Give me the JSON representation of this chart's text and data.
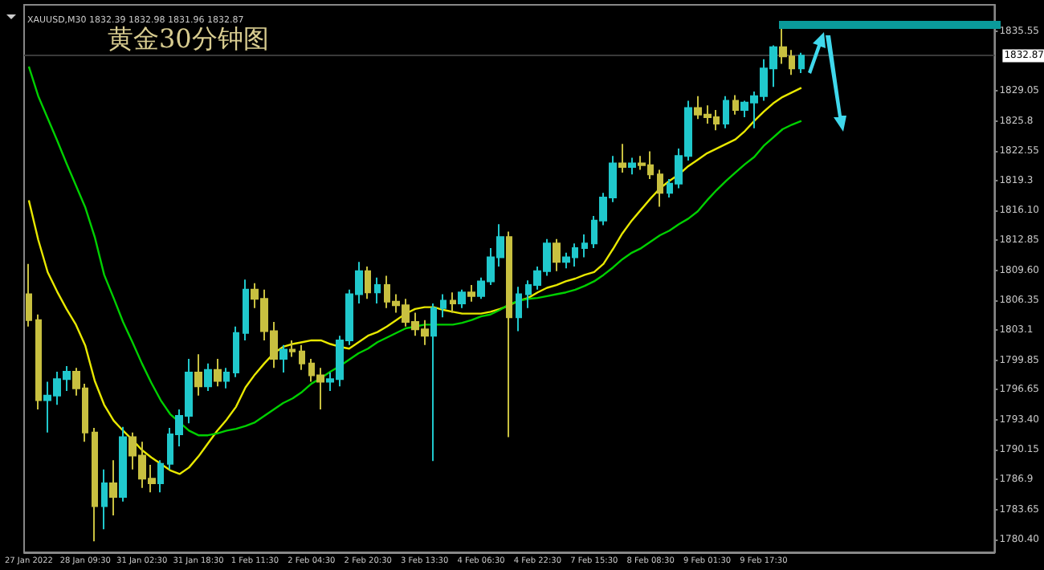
{
  "chart_data": {
    "type": "candlestick",
    "title": "黄金30分钟图",
    "annotations": [
      "XAUUSD,M30 1832.39 1832.98 1831.96 1832.87"
    ],
    "categories": [
      "27 Jan 2022",
      null,
      null,
      null,
      null,
      null,
      "28 Jan 09:30",
      null,
      null,
      null,
      null,
      null,
      "31 Jan 02:30",
      null,
      null,
      null,
      null,
      null,
      "31 Jan 18:30",
      null,
      null,
      null,
      null,
      null,
      "1 Feb 11:30",
      null,
      null,
      null,
      null,
      null,
      "2 Feb 04:30",
      null,
      null,
      null,
      null,
      null,
      "2 Feb 20:30",
      null,
      null,
      null,
      null,
      null,
      "3 Feb 13:30",
      null,
      null,
      null,
      null,
      null,
      "4 Feb 06:30",
      null,
      null,
      null,
      null,
      null,
      "4 Feb 22:30",
      null,
      null,
      null,
      null,
      null,
      "7 Feb 15:30",
      null,
      null,
      null,
      null,
      null,
      "8 Feb 08:30",
      null,
      null,
      null,
      null,
      null,
      "9 Feb 01:30",
      null,
      null,
      null,
      null,
      null,
      "9 Feb 17:30",
      null,
      null,
      null,
      null,
      null,
      null,
      null,
      null,
      null,
      null,
      null,
      null,
      null,
      null,
      null,
      null,
      null,
      null,
      null,
      null,
      null,
      null,
      null,
      null
    ],
    "ohlc": [
      [
        1807.0,
        1810.3,
        1803.5,
        1804.2
      ],
      [
        1804.2,
        1804.8,
        1794.5,
        1795.5
      ],
      [
        1795.5,
        1797.5,
        1792.0,
        1796.0
      ],
      [
        1796.0,
        1798.6,
        1795.0,
        1797.8
      ],
      [
        1797.8,
        1799.2,
        1796.5,
        1798.6
      ],
      [
        1798.6,
        1799.0,
        1796.0,
        1796.8
      ],
      [
        1796.8,
        1797.3,
        1791.0,
        1792.0
      ],
      [
        1792.0,
        1792.5,
        1780.2,
        1784.0
      ],
      [
        1784.0,
        1788.0,
        1781.5,
        1786.5
      ],
      [
        1786.5,
        1789.0,
        1783.0,
        1785.0
      ],
      [
        1785.0,
        1792.6,
        1784.5,
        1791.5
      ],
      [
        1791.5,
        1792.0,
        1788.0,
        1789.5
      ],
      [
        1789.5,
        1791.0,
        1786.0,
        1787.0
      ],
      [
        1787.0,
        1788.5,
        1785.5,
        1786.5
      ],
      [
        1786.5,
        1789.0,
        1785.5,
        1788.6
      ],
      [
        1788.6,
        1792.5,
        1788.0,
        1791.8
      ],
      [
        1791.8,
        1794.5,
        1790.5,
        1793.8
      ],
      [
        1793.8,
        1800.0,
        1793.0,
        1798.5
      ],
      [
        1798.5,
        1800.5,
        1796.0,
        1797.0
      ],
      [
        1797.0,
        1799.5,
        1796.5,
        1798.8
      ],
      [
        1798.8,
        1800.0,
        1797.0,
        1797.6
      ],
      [
        1797.6,
        1799.0,
        1796.8,
        1798.5
      ],
      [
        1798.5,
        1803.5,
        1798.0,
        1802.8
      ],
      [
        1802.8,
        1808.6,
        1802.0,
        1807.5
      ],
      [
        1807.5,
        1808.2,
        1805.5,
        1806.5
      ],
      [
        1806.5,
        1807.5,
        1802.0,
        1803.0
      ],
      [
        1803.0,
        1804.0,
        1799.0,
        1800.0
      ],
      [
        1800.0,
        1801.5,
        1798.5,
        1801.0
      ],
      [
        1801.0,
        1802.0,
        1800.2,
        1800.8
      ],
      [
        1800.8,
        1801.5,
        1798.8,
        1799.5
      ],
      [
        1799.5,
        1800.0,
        1797.5,
        1798.2
      ],
      [
        1798.2,
        1799.0,
        1794.5,
        1797.5
      ],
      [
        1797.5,
        1798.5,
        1796.5,
        1797.8
      ],
      [
        1797.8,
        1802.5,
        1797.0,
        1802.0
      ],
      [
        1802.0,
        1807.5,
        1801.5,
        1807.0
      ],
      [
        1807.0,
        1810.5,
        1806.0,
        1809.5
      ],
      [
        1809.5,
        1810.0,
        1806.5,
        1807.2
      ],
      [
        1807.2,
        1808.8,
        1806.0,
        1808.0
      ],
      [
        1808.0,
        1809.0,
        1805.5,
        1806.2
      ],
      [
        1806.2,
        1807.0,
        1805.0,
        1805.8
      ],
      [
        1805.8,
        1806.5,
        1803.5,
        1804.0
      ],
      [
        1804.0,
        1805.0,
        1802.5,
        1803.2
      ],
      [
        1803.2,
        1804.2,
        1801.5,
        1802.5
      ],
      [
        1802.5,
        1806.0,
        1788.9,
        1805.5
      ],
      [
        1805.5,
        1807.0,
        1804.5,
        1806.3
      ],
      [
        1806.3,
        1807.2,
        1805.0,
        1806.0
      ],
      [
        1806.0,
        1807.5,
        1805.5,
        1807.2
      ],
      [
        1807.2,
        1808.0,
        1806.2,
        1806.8
      ],
      [
        1806.8,
        1808.8,
        1806.5,
        1808.4
      ],
      [
        1808.4,
        1812.0,
        1808.0,
        1811.0
      ],
      [
        1811.0,
        1814.6,
        1810.0,
        1813.2
      ],
      [
        1813.2,
        1813.8,
        1791.5,
        1804.5
      ],
      [
        1804.5,
        1807.8,
        1803.0,
        1807.0
      ],
      [
        1807.0,
        1808.5,
        1805.5,
        1808.0
      ],
      [
        1808.0,
        1810.0,
        1807.5,
        1809.5
      ],
      [
        1809.5,
        1813.0,
        1809.0,
        1812.5
      ],
      [
        1812.5,
        1813.0,
        1809.5,
        1810.5
      ],
      [
        1810.5,
        1811.5,
        1809.8,
        1811.0
      ],
      [
        1811.0,
        1812.5,
        1810.0,
        1812.0
      ],
      [
        1812.0,
        1813.5,
        1811.0,
        1812.5
      ],
      [
        1812.5,
        1815.5,
        1812.0,
        1815.0
      ],
      [
        1815.0,
        1818.0,
        1814.5,
        1817.5
      ],
      [
        1817.5,
        1822.0,
        1817.0,
        1821.2
      ],
      [
        1821.2,
        1823.3,
        1820.2,
        1820.8
      ],
      [
        1820.8,
        1821.8,
        1820.0,
        1821.2
      ],
      [
        1821.2,
        1822.0,
        1820.5,
        1821.0
      ],
      [
        1821.0,
        1822.5,
        1819.5,
        1820.0
      ],
      [
        1820.0,
        1820.5,
        1816.5,
        1818.0
      ],
      [
        1818.0,
        1819.5,
        1817.5,
        1819.0
      ],
      [
        1819.0,
        1822.8,
        1818.5,
        1822.0
      ],
      [
        1822.0,
        1828.0,
        1821.5,
        1827.2
      ],
      [
        1827.2,
        1828.5,
        1826.0,
        1826.5
      ],
      [
        1826.5,
        1827.5,
        1825.5,
        1826.2
      ],
      [
        1826.2,
        1827.0,
        1824.8,
        1825.5
      ],
      [
        1825.5,
        1828.5,
        1825.0,
        1828.0
      ],
      [
        1828.0,
        1828.6,
        1826.5,
        1827.0
      ],
      [
        1827.0,
        1828.0,
        1826.2,
        1827.8
      ],
      [
        1827.8,
        1829.0,
        1825.0,
        1828.5
      ],
      [
        1828.5,
        1832.5,
        1828.0,
        1831.5
      ],
      [
        1831.5,
        1834.0,
        1829.5,
        1833.8
      ],
      [
        1833.8,
        1836.0,
        1832.0,
        1832.8
      ],
      [
        1832.8,
        1833.5,
        1830.8,
        1831.5
      ],
      [
        1831.5,
        1833.2,
        1831.0,
        1832.9
      ],
      null,
      null,
      null,
      null,
      null,
      null,
      null,
      null,
      null,
      null,
      null,
      null,
      null,
      null,
      null,
      null,
      null,
      null,
      null,
      null
    ],
    "series": [
      {
        "type": "line",
        "color": "#e8e800",
        "values": [
          1817.2,
          1812.9,
          1809.4,
          1807.3,
          1805.4,
          1803.7,
          1801.4,
          1797.6,
          1795.0,
          1793.3,
          1792.2,
          1791.2,
          1790.1,
          1789.3,
          1788.6,
          1787.9,
          1787.5,
          1788.2,
          1789.4,
          1790.8,
          1792.2,
          1793.4,
          1794.8,
          1796.9,
          1798.3,
          1799.5,
          1800.6,
          1801.3,
          1801.6,
          1801.8,
          1802.0,
          1802.0,
          1801.6,
          1801.3,
          1801.1,
          1801.8,
          1802.5,
          1802.9,
          1803.5,
          1804.2,
          1804.9,
          1805.4,
          1805.6,
          1805.6,
          1805.3,
          1805.1,
          1804.9,
          1804.9,
          1804.9,
          1805.1,
          1805.4,
          1805.8,
          1806.3,
          1806.6,
          1807.2,
          1807.7,
          1808.0,
          1808.4,
          1808.7,
          1809.1,
          1809.4,
          1810.3,
          1811.9,
          1813.6,
          1815.0,
          1816.2,
          1817.4,
          1818.5,
          1819.3,
          1820.0,
          1820.9,
          1821.6,
          1822.3,
          1822.8,
          1823.3,
          1823.8,
          1824.7,
          1825.8,
          1826.8,
          1827.7,
          1828.4,
          1828.9,
          1829.4,
          null,
          null,
          null,
          null,
          null,
          null,
          null,
          null,
          null,
          null,
          null,
          null,
          null,
          null,
          null,
          null,
          null,
          null,
          null,
          null
        ]
      },
      {
        "type": "line",
        "color": "#00d000",
        "values": [
          1831.7,
          1828.5,
          1826.1,
          1823.7,
          1821.2,
          1818.8,
          1816.4,
          1813.2,
          1809.1,
          1806.6,
          1804.0,
          1801.8,
          1799.5,
          1797.4,
          1795.5,
          1794.0,
          1793.1,
          1792.2,
          1791.7,
          1791.7,
          1791.9,
          1792.2,
          1792.4,
          1792.7,
          1793.1,
          1793.8,
          1794.5,
          1795.2,
          1795.7,
          1796.4,
          1797.3,
          1797.9,
          1798.6,
          1799.2,
          1799.9,
          1800.6,
          1801.1,
          1801.8,
          1802.3,
          1802.8,
          1803.3,
          1803.5,
          1803.7,
          1803.7,
          1803.7,
          1803.7,
          1803.9,
          1804.2,
          1804.6,
          1804.8,
          1805.3,
          1805.9,
          1806.3,
          1806.5,
          1806.6,
          1806.8,
          1807.0,
          1807.2,
          1807.5,
          1807.9,
          1808.4,
          1809.1,
          1809.9,
          1810.8,
          1811.5,
          1812.0,
          1812.7,
          1813.4,
          1813.9,
          1814.6,
          1815.2,
          1816.0,
          1817.2,
          1818.3,
          1819.3,
          1820.2,
          1821.1,
          1821.9,
          1823.1,
          1824.0,
          1824.9,
          1825.4,
          1825.8,
          null,
          null,
          null,
          null,
          null,
          null,
          null,
          null,
          null,
          null,
          null,
          null,
          null,
          null,
          null,
          null,
          null,
          null,
          null,
          null
        ]
      }
    ],
    "ylim": [
      1779.0,
      1838.4
    ],
    "yticks": [
      {
        "value": 1780.4,
        "label": "1780.40"
      },
      1783.65,
      1786.9,
      1790.15,
      {
        "value": 1793.4,
        "label": "1793.40"
      },
      1796.65,
      1799.85,
      1803.1,
      1806.35,
      {
        "value": 1809.6,
        "label": "1809.60"
      },
      1812.85,
      {
        "value": 1816.1,
        "label": "1816.10"
      },
      1819.3,
      1822.55,
      1825.8,
      1829.05,
      1835.55
    ],
    "ref_lines": [
      {
        "axis": "y",
        "value": 1832.87,
        "label": "1832.87",
        "color": "#3a3a3a"
      }
    ],
    "marker": "none",
    "grid": false
  }
}
